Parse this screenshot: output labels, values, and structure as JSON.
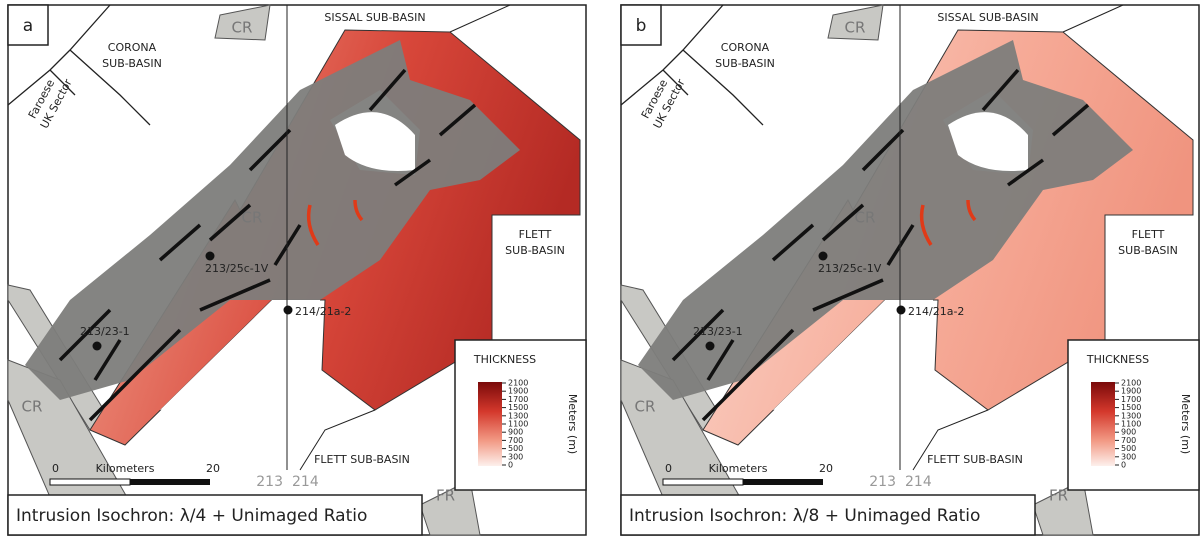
{
  "panels": [
    {
      "letter": "a",
      "caption": "Intrusion Isochron: λ/4 + Unimaged Ratio"
    },
    {
      "letter": "b",
      "caption": "Intrusion Isochron: λ/8 + Unimaged Ratio"
    }
  ],
  "labels": {
    "sissal": "SISSAL SUB-BASIN",
    "corona": [
      "CORONA",
      "SUB-BASIN"
    ],
    "flett_east": [
      "FLETT",
      "SUB-BASIN"
    ],
    "flett_south": "FLETT SUB-BASIN",
    "cr": "CR",
    "fr": "FR",
    "boundary": [
      "Faroese",
      "UK Sector"
    ],
    "wells": [
      "213/25c-1V",
      "214/21a-2",
      "213/23-1"
    ],
    "quads": [
      "213",
      "214"
    ],
    "scale": {
      "start": "0",
      "end": "20",
      "unit": "Kilometers"
    }
  },
  "legend": {
    "title": "THICKNESS",
    "unit": "Meters (m)",
    "ticks": [
      "2100",
      "1900",
      "1700",
      "1500",
      "1300",
      "1100",
      "900",
      "700",
      "500",
      "300",
      "0"
    ]
  }
}
